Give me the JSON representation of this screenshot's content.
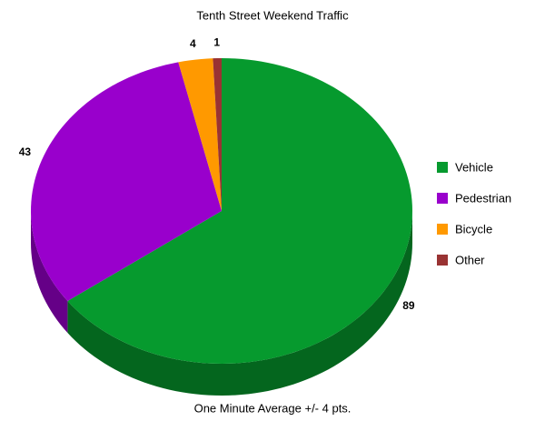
{
  "chart_data": {
    "type": "pie",
    "title": "Tenth Street Weekend Traffic",
    "subtitle": "One Minute Average +/- 4 pts.",
    "categories": [
      "Vehicle",
      "Pedestrian",
      "Bicycle",
      "Other"
    ],
    "values": [
      89,
      43,
      4,
      1
    ],
    "colors": [
      "#069a2e",
      "#9900cc",
      "#ff9900",
      "#993333"
    ],
    "legend": "right"
  }
}
